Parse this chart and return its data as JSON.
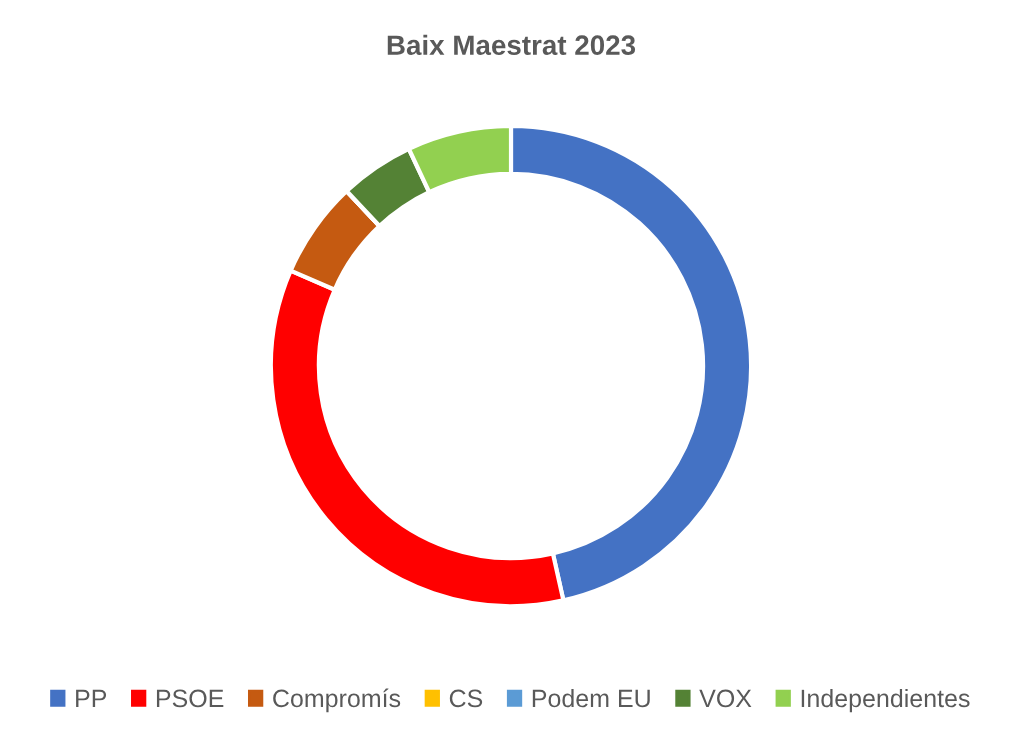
{
  "chart_data": {
    "type": "donut",
    "title": "Baix Maestrat 2023",
    "categories": [
      "PP",
      "PSOE",
      "Compromís",
      "CS",
      "Podem EU",
      "VOX",
      "Independientes"
    ],
    "values": [
      46.5,
      35,
      6.5,
      0,
      0,
      5,
      7
    ],
    "colors": [
      "#4472c4",
      "#ff0000",
      "#c55a11",
      "#ffc000",
      "#5b9bd5",
      "#548235",
      "#92d050"
    ],
    "legend": "bottom"
  }
}
